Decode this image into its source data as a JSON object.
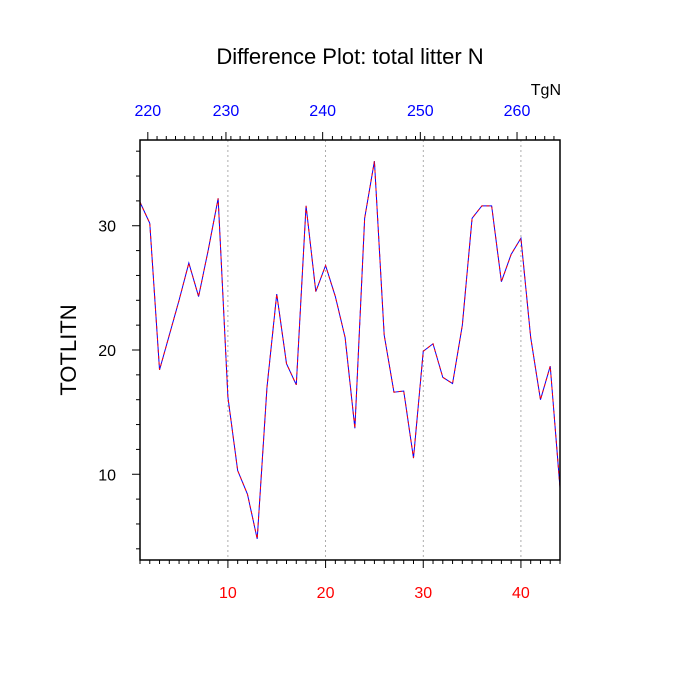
{
  "chart_data": {
    "type": "line",
    "title": "Difference Plot: total litter N",
    "units_label": "TgN",
    "ylabel": "TOTLITN",
    "xlabel": "",
    "xlim": [
      1,
      44
    ],
    "ylim": [
      3.1,
      36.9
    ],
    "top_axis": {
      "ticks": [
        "220",
        "230",
        "240",
        "250",
        "260"
      ],
      "tick_values": [
        1.8,
        9.8,
        19.7,
        29.7,
        39.6
      ],
      "color": "#0000ff"
    },
    "bottom_axis": {
      "ticks": [
        "10",
        "20",
        "30",
        "40"
      ],
      "tick_values": [
        10,
        20,
        30,
        40
      ],
      "color": "#ff0000"
    },
    "yticks": [
      "10",
      "20",
      "30"
    ],
    "ytick_values": [
      10,
      20,
      30
    ],
    "grid": "vertical-dotted",
    "series": [
      {
        "color_solid": "#0000ff",
        "color_dash": "#ff0000",
        "x": [
          1,
          2,
          3,
          4,
          5,
          6,
          7,
          8,
          9,
          10,
          11,
          12,
          13,
          14,
          15,
          16,
          17,
          18,
          19,
          20,
          21,
          22,
          23,
          24,
          25,
          26,
          27,
          28,
          29,
          30,
          31,
          32,
          33,
          34,
          35,
          36,
          37,
          38,
          39,
          40,
          41,
          42,
          43,
          44
        ],
        "values": [
          31.9,
          30.2,
          18.4,
          21.2,
          24.0,
          27.0,
          24.3,
          28.1,
          32.2,
          16.2,
          10.3,
          8.4,
          4.8,
          17.0,
          24.5,
          18.9,
          17.2,
          31.6,
          24.7,
          26.8,
          24.3,
          21.0,
          13.7,
          30.6,
          35.2,
          21.2,
          16.6,
          16.7,
          11.3,
          19.9,
          20.5,
          17.8,
          17.3,
          22.0,
          30.6,
          31.6,
          31.6,
          25.5,
          27.7,
          29.0,
          21.0,
          16.0,
          18.7,
          8.9
        ]
      }
    ]
  }
}
